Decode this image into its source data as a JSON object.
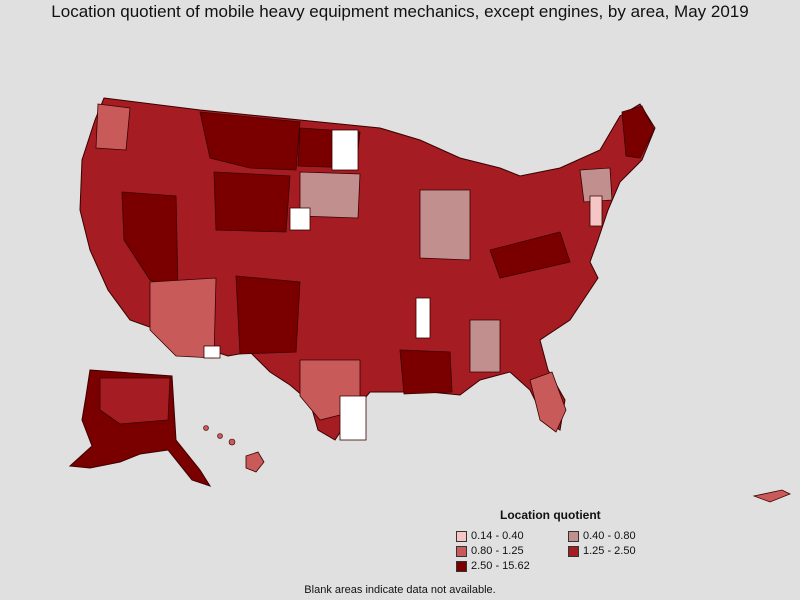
{
  "title": "Location quotient of mobile heavy equipment mechanics, except engines, by area, May 2019",
  "legend": {
    "title": "Location quotient",
    "items": [
      {
        "label": "0.14 - 0.40",
        "color": "#f4c6c6"
      },
      {
        "label": "0.40 - 0.80",
        "color": "#c28f8f"
      },
      {
        "label": "0.80 - 1.25",
        "color": "#c85a5a"
      },
      {
        "label": "1.25 - 2.50",
        "color": "#a51c22"
      },
      {
        "label": "2.50 - 15.62",
        "color": "#7a0000"
      }
    ]
  },
  "no_data_color": "#ffffff",
  "footnote": "Blank areas indicate data not available."
}
